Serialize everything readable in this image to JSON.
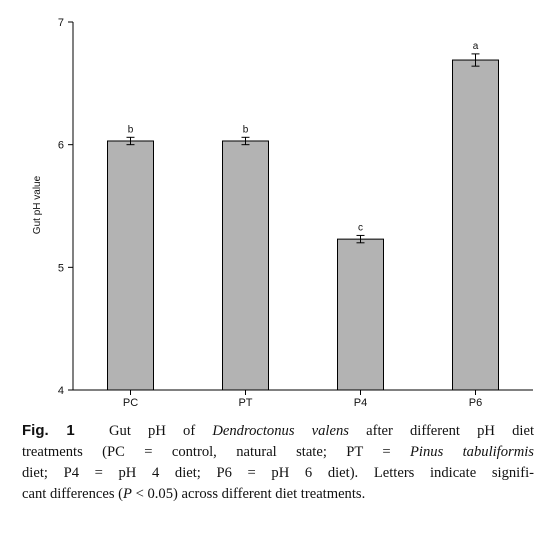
{
  "chart_data": {
    "type": "bar",
    "categories": [
      "PC",
      "PT",
      "P4",
      "P6"
    ],
    "values": [
      6.03,
      6.03,
      5.23,
      6.69
    ],
    "errors": [
      0.03,
      0.03,
      0.03,
      0.05
    ],
    "significance": [
      "b",
      "b",
      "c",
      "a"
    ],
    "ylabel": "Gut pH value",
    "xlabel": "",
    "ylim": [
      4,
      7
    ],
    "yticks": [
      4,
      5,
      6,
      7
    ],
    "bar_color": "#b3b3b3",
    "grid": false
  },
  "caption": {
    "fig_label": "Fig. 1",
    "line1_a": "Gut pH of ",
    "line1_species": "Dendroctonus valens",
    "line1_b": " after different pH diet",
    "line2_a": "treatments (PC = control, natural state; PT = ",
    "line2_species": "Pinus tabuliformis",
    "line3": "diet; P4 = pH 4 diet; P6 = pH 6 diet). Letters indicate signifi-",
    "line4_a": "cant differences (",
    "line4_p": "P",
    "line4_b": " < 0.05) across different diet treatments."
  }
}
